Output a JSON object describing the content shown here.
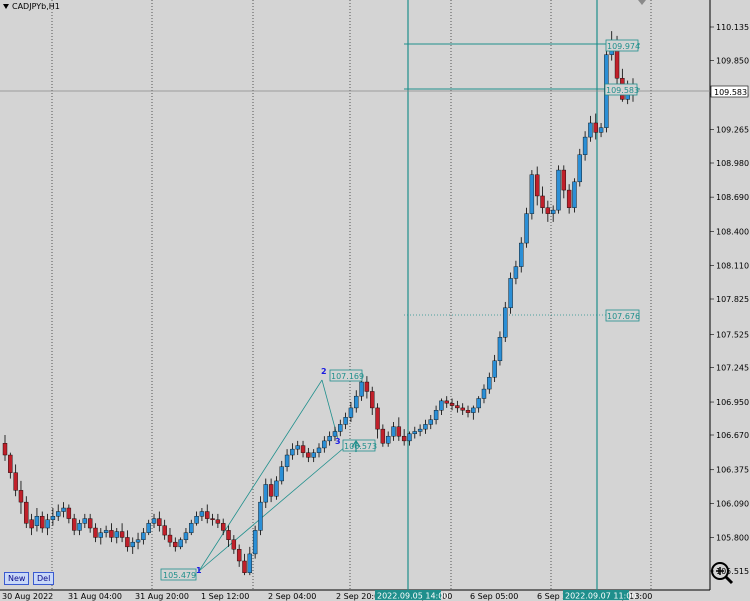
{
  "symbol": "CADJPYb,H1",
  "current_price": "109.583",
  "price_axis": [
    "110.135",
    "109.850",
    "109.565",
    "109.265",
    "108.980",
    "108.690",
    "108.400",
    "108.110",
    "107.825",
    "107.525",
    "107.245",
    "106.950",
    "106.670",
    "106.375",
    "106.090",
    "105.800",
    "105.515"
  ],
  "time_axis": [
    "30 Aug 2022",
    "31 Aug 04:00",
    "31 Aug 20:00",
    "1 Sep 12:00",
    "2 Sep 04:00",
    "2 Sep 20:00",
    "4 Sep 12:00",
    "6 Sep 05:00",
    "6 Sep 21:00",
    "7 Sep 13:00"
  ],
  "time_marker_1": "2022.09.05 14:00",
  "time_marker_2": "2022.09.07 11:00",
  "labels": {
    "low_price": "105.479",
    "peak_price": "107.169",
    "mid_price": "106.573",
    "level_price": "107.676",
    "high_price": "109.974",
    "last_price": "109.583"
  },
  "zigzag": {
    "point_1": "1",
    "point_2": "2",
    "point_3": "3"
  },
  "buttons": {
    "new": "New",
    "del": "Del"
  },
  "colors": {
    "bull": "#2b8fd6",
    "bear": "#c0202a",
    "teal": "#1f8f8c",
    "bg": "#d4d4d4"
  },
  "icons": {
    "zoom": "zoom-magnifier-icon",
    "collapse": "triangle-down-icon",
    "scroll_marker": "triangle-down-icon"
  },
  "candles": [
    [
      106.6,
      106.67,
      106.5,
      106.45
    ],
    [
      106.5,
      106.52,
      106.35,
      106.3
    ],
    [
      106.35,
      106.42,
      106.2,
      106.15
    ],
    [
      106.2,
      106.28,
      106.1,
      106.0
    ],
    [
      106.1,
      106.15,
      105.92,
      105.88
    ],
    [
      105.95,
      106.0,
      105.88,
      105.82
    ],
    [
      105.9,
      106.05,
      105.98,
      105.85
    ],
    [
      105.98,
      106.02,
      105.88,
      105.84
    ],
    [
      105.88,
      106.0,
      105.95,
      105.82
    ],
    [
      105.95,
      106.05,
      105.98,
      105.9
    ],
    [
      105.98,
      106.08,
      106.02,
      105.94
    ],
    [
      106.02,
      106.1,
      106.05,
      105.97
    ],
    [
      106.05,
      106.08,
      105.96,
      105.92
    ],
    [
      105.96,
      106.0,
      105.86,
      105.82
    ],
    [
      105.86,
      105.95,
      105.92,
      105.82
    ],
    [
      105.92,
      106.0,
      105.96,
      105.88
    ],
    [
      105.96,
      106.0,
      105.88,
      105.84
    ],
    [
      105.88,
      105.92,
      105.8,
      105.76
    ],
    [
      105.8,
      105.88,
      105.84,
      105.74
    ],
    [
      105.84,
      105.9,
      105.86,
      105.8
    ],
    [
      105.86,
      105.92,
      105.8,
      105.76
    ],
    [
      105.8,
      105.88,
      105.85,
      105.75
    ],
    [
      105.85,
      105.92,
      105.8,
      105.76
    ],
    [
      105.8,
      105.86,
      105.72,
      105.68
    ],
    [
      105.72,
      105.8,
      105.76,
      105.66
    ],
    [
      105.76,
      105.84,
      105.78,
      105.7
    ],
    [
      105.78,
      105.88,
      105.84,
      105.74
    ],
    [
      105.84,
      105.95,
      105.92,
      105.82
    ],
    [
      105.92,
      106.0,
      105.96,
      105.88
    ],
    [
      105.96,
      106.02,
      105.9,
      105.85
    ],
    [
      105.9,
      105.95,
      105.82,
      105.78
    ],
    [
      105.82,
      105.88,
      105.76,
      105.72
    ],
    [
      105.76,
      105.8,
      105.72,
      105.68
    ],
    [
      105.72,
      105.8,
      105.78,
      105.7
    ],
    [
      105.78,
      105.88,
      105.84,
      105.75
    ],
    [
      105.84,
      105.95,
      105.92,
      105.82
    ],
    [
      105.92,
      106.02,
      105.98,
      105.9
    ],
    [
      105.98,
      106.05,
      106.02,
      105.94
    ],
    [
      106.02,
      106.08,
      105.96,
      105.92
    ],
    [
      105.96,
      106.0,
      105.95,
      105.9
    ],
    [
      105.95,
      106.0,
      105.92,
      105.88
    ],
    [
      105.92,
      105.96,
      105.86,
      105.82
    ],
    [
      105.86,
      105.9,
      105.78,
      105.72
    ],
    [
      105.78,
      105.82,
      105.7,
      105.66
    ],
    [
      105.7,
      105.74,
      105.6,
      105.55
    ],
    [
      105.6,
      105.66,
      105.5,
      105.48
    ],
    [
      105.5,
      105.72,
      105.66,
      105.48
    ],
    [
      105.66,
      105.9,
      105.86,
      105.62
    ],
    [
      105.86,
      106.15,
      106.1,
      105.82
    ],
    [
      106.1,
      106.3,
      106.25,
      106.05
    ],
    [
      106.25,
      106.3,
      106.15,
      106.1
    ],
    [
      106.15,
      106.32,
      106.28,
      106.12
    ],
    [
      106.28,
      106.45,
      106.4,
      106.25
    ],
    [
      106.4,
      106.55,
      106.5,
      106.36
    ],
    [
      106.5,
      106.6,
      106.55,
      106.46
    ],
    [
      106.55,
      106.62,
      106.58,
      106.5
    ],
    [
      106.58,
      106.62,
      106.52,
      106.48
    ],
    [
      106.52,
      106.56,
      106.48,
      106.44
    ],
    [
      106.48,
      106.55,
      106.52,
      106.44
    ],
    [
      106.52,
      106.6,
      106.56,
      106.48
    ],
    [
      106.56,
      106.66,
      106.62,
      106.52
    ],
    [
      106.62,
      106.7,
      106.66,
      106.58
    ],
    [
      106.66,
      106.74,
      106.7,
      106.62
    ],
    [
      106.7,
      106.8,
      106.76,
      106.66
    ],
    [
      106.76,
      106.86,
      106.82,
      106.72
    ],
    [
      106.82,
      106.95,
      106.9,
      106.78
    ],
    [
      106.9,
      107.05,
      107.0,
      106.86
    ],
    [
      107.0,
      107.17,
      107.12,
      106.96
    ],
    [
      107.12,
      107.17,
      107.04,
      106.98
    ],
    [
      107.04,
      107.08,
      106.9,
      106.84
    ],
    [
      106.9,
      106.94,
      106.72,
      106.64
    ],
    [
      106.72,
      106.76,
      106.6,
      106.57
    ],
    [
      106.6,
      106.7,
      106.66,
      106.57
    ],
    [
      106.66,
      106.78,
      106.74,
      106.62
    ],
    [
      106.74,
      106.82,
      106.66,
      106.62
    ],
    [
      106.66,
      106.72,
      106.62,
      106.58
    ],
    [
      106.62,
      106.7,
      106.68,
      106.58
    ],
    [
      106.68,
      106.74,
      106.7,
      106.64
    ],
    [
      106.7,
      106.76,
      106.72,
      106.66
    ],
    [
      106.72,
      106.8,
      106.76,
      106.68
    ],
    [
      106.76,
      106.84,
      106.8,
      106.72
    ],
    [
      106.8,
      106.92,
      106.88,
      106.76
    ],
    [
      106.88,
      106.98,
      106.96,
      106.84
    ],
    [
      106.96,
      107.0,
      106.94,
      106.9
    ],
    [
      106.94,
      106.98,
      106.92,
      106.88
    ],
    [
      106.92,
      106.96,
      106.9,
      106.86
    ],
    [
      106.9,
      106.94,
      106.88,
      106.84
    ],
    [
      106.88,
      106.92,
      106.86,
      106.82
    ],
    [
      106.86,
      106.92,
      106.9,
      106.8
    ],
    [
      106.9,
      107.0,
      106.98,
      106.86
    ],
    [
      106.98,
      107.1,
      107.06,
      106.94
    ],
    [
      107.06,
      107.2,
      107.16,
      107.02
    ],
    [
      107.16,
      107.35,
      107.3,
      107.12
    ],
    [
      107.3,
      107.55,
      107.5,
      107.26
    ],
    [
      107.5,
      107.8,
      107.75,
      107.46
    ],
    [
      107.75,
      108.05,
      108.0,
      107.7
    ],
    [
      108.0,
      108.15,
      108.1,
      107.95
    ],
    [
      108.1,
      108.35,
      108.3,
      108.05
    ],
    [
      108.3,
      108.6,
      108.55,
      108.26
    ],
    [
      108.55,
      108.92,
      108.88,
      108.5
    ],
    [
      108.88,
      108.95,
      108.7,
      108.62
    ],
    [
      108.7,
      108.78,
      108.6,
      108.55
    ],
    [
      108.6,
      108.66,
      108.55,
      108.48
    ],
    [
      108.55,
      108.62,
      108.58,
      108.48
    ],
    [
      108.58,
      108.96,
      108.92,
      108.55
    ],
    [
      108.92,
      108.96,
      108.75,
      108.68
    ],
    [
      108.75,
      108.8,
      108.6,
      108.55
    ],
    [
      108.6,
      108.85,
      108.82,
      108.56
    ],
    [
      108.82,
      109.1,
      109.05,
      108.78
    ],
    [
      109.05,
      109.25,
      109.2,
      109.0
    ],
    [
      109.2,
      109.38,
      109.32,
      109.16
    ],
    [
      109.32,
      109.4,
      109.24,
      109.18
    ],
    [
      109.24,
      109.32,
      109.28,
      109.2
    ],
    [
      109.28,
      109.95,
      109.9,
      109.24
    ],
    [
      109.9,
      110.1,
      110.02,
      109.85
    ],
    [
      110.02,
      110.06,
      109.7,
      109.64
    ],
    [
      109.7,
      109.78,
      109.52,
      109.5
    ],
    [
      109.52,
      109.68,
      109.64,
      109.48
    ],
    [
      109.64,
      109.7,
      109.58,
      109.5
    ]
  ]
}
